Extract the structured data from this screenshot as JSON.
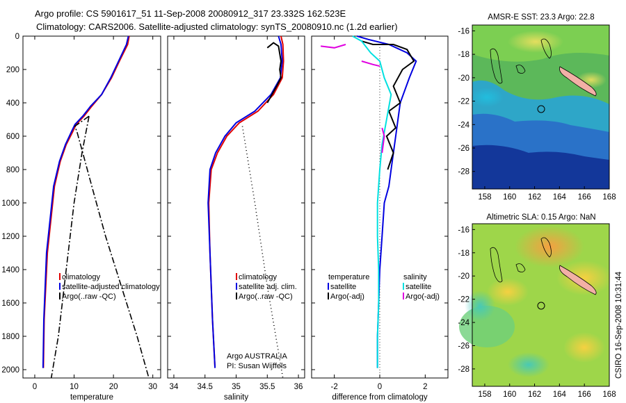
{
  "header": {
    "line1": "Argo profile: CS 5901617_51 11-Sep-2008 20080912_317 23.332S 162.523E",
    "line2": "Climatology: CARS2006. Satellite-adjusted climatology: synTS_20080910.nc (1.2d earlier)"
  },
  "footer_vertical": "CSIRO 16-Sep-2008 10:31:44",
  "chart_data": [
    {
      "type": "line",
      "xlabel": "temperature",
      "ylabel": "",
      "xlim": [
        -3,
        32
      ],
      "ylim": [
        2050,
        0
      ],
      "xticks": [
        0,
        10,
        20,
        30
      ],
      "yticks": [
        0,
        200,
        400,
        600,
        800,
        1000,
        1200,
        1400,
        1600,
        1800,
        2000
      ],
      "legend": [
        "climatology",
        "satellite-adjusted climatology",
        "Argo(..raw -QC)"
      ],
      "series": [
        {
          "name": "climatology",
          "color": "#e00000",
          "dash": "",
          "x": [
            24.0,
            23.6,
            21.5,
            19.5,
            17.0,
            14.5,
            12.5,
            10.5,
            9.5,
            8.0,
            6.5,
            5.0,
            3.2,
            2.4,
            2.2
          ],
          "y": [
            0,
            50,
            150,
            250,
            350,
            420,
            480,
            530,
            580,
            650,
            750,
            900,
            1300,
            1700,
            1990
          ]
        },
        {
          "name": "satellite-adjusted climatology",
          "color": "#0000e0",
          "dash": "",
          "x": [
            23.8,
            23.3,
            21.3,
            19.3,
            17.0,
            14.2,
            12.2,
            10.2,
            9.2,
            7.8,
            6.3,
            4.8,
            3.0,
            2.3,
            2.1
          ],
          "y": [
            0,
            50,
            150,
            250,
            350,
            420,
            480,
            530,
            580,
            650,
            750,
            900,
            1300,
            1700,
            1990
          ]
        },
        {
          "name": "Argo(..raw -QC)",
          "color": "#000000",
          "dash": "9,3,2,3",
          "x": [
            13.8,
            10.2,
            10.8,
            12.2,
            14.5,
            18.0,
            22.0,
            26.0,
            29.0
          ],
          "y": [
            480,
            540,
            580,
            700,
            900,
            1200,
            1500,
            1800,
            2050
          ]
        },
        {
          "name": "Argo(..raw -QC)",
          "color": "#000000",
          "dash": "9,3,2,3",
          "x": [
            13.8,
            12.0,
            10.0,
            8.0,
            6.0,
            4.2
          ],
          "y": [
            480,
            700,
            1000,
            1400,
            1800,
            2050
          ]
        }
      ]
    },
    {
      "type": "line",
      "xlabel": "salinity",
      "ylabel": "",
      "xlim": [
        33.9,
        36.1
      ],
      "ylim": [
        2050,
        0
      ],
      "xticks": [
        34,
        34.5,
        35,
        35.5,
        36
      ],
      "legend": [
        "climatology",
        "satellite adj. clim.",
        "Argo(..raw -QC)"
      ],
      "annotations": [
        "Argo AUSTRALIA",
        "PI: Susan Wijffels"
      ],
      "series": [
        {
          "name": "climatology",
          "color": "#e00000",
          "dash": "",
          "x": [
            35.72,
            35.75,
            35.76,
            35.74,
            35.6,
            35.35,
            35.05,
            34.85,
            34.7,
            34.6,
            34.56,
            34.58,
            34.62,
            34.66
          ],
          "y": [
            0,
            50,
            150,
            250,
            350,
            450,
            520,
            600,
            700,
            800,
            1000,
            1300,
            1700,
            1990
          ]
        },
        {
          "name": "satellite adj. clim.",
          "color": "#0000e0",
          "dash": "",
          "x": [
            35.68,
            35.72,
            35.74,
            35.71,
            35.56,
            35.3,
            35.0,
            34.82,
            34.67,
            34.58,
            34.55,
            34.58,
            34.62,
            34.66
          ],
          "y": [
            0,
            50,
            150,
            250,
            350,
            450,
            520,
            600,
            700,
            800,
            1000,
            1300,
            1700,
            1990
          ]
        },
        {
          "name": "Argo(..raw -QC)",
          "color": "#000000",
          "dash": "",
          "x": [
            35.5,
            35.6,
            35.68,
            35.72,
            35.7,
            35.72,
            35.65,
            35.5
          ],
          "y": [
            70,
            40,
            60,
            150,
            200,
            250,
            300,
            400
          ]
        },
        {
          "name": "Argo(..raw -QC)",
          "color": "#000000",
          "dash": "1,4",
          "x": [
            35.1,
            35.3,
            35.5,
            35.75
          ],
          "y": [
            540,
            1000,
            1500,
            2050
          ]
        }
      ]
    },
    {
      "type": "line",
      "xlabel": "difference from climatology",
      "ylabel": "",
      "xlim": [
        -3,
        3
      ],
      "ylim": [
        2050,
        0
      ],
      "xticks": [
        -2,
        0,
        2
      ],
      "legend": [
        "temperature",
        "satellite",
        "Argo(-adj)",
        "salinity",
        "satellite",
        "Argo(-adj)"
      ],
      "series": [
        {
          "name": "satellite",
          "color": "#0000e0",
          "dash": "",
          "x": [
            -1.0,
            -0.5,
            0.4,
            1.2,
            1.6,
            1.3,
            0.9,
            0.7,
            0.5,
            0.4,
            0.2,
            0.1,
            0.0,
            -0.05,
            -0.1,
            -0.1
          ],
          "y": [
            0,
            20,
            50,
            100,
            150,
            250,
            400,
            600,
            800,
            900,
            1000,
            1200,
            1400,
            1600,
            1800,
            1990
          ]
        },
        {
          "name": "Argo(-adj)",
          "color": "#000000",
          "dash": "",
          "x": [
            -0.8,
            -0.3,
            0.6,
            1.2,
            1.5,
            1.0,
            0.6,
            0.9,
            0.4,
            0.7,
            0.3,
            0.6,
            0.35
          ],
          "y": [
            30,
            50,
            50,
            80,
            150,
            200,
            300,
            400,
            450,
            550,
            600,
            700,
            800
          ]
        },
        {
          "name": "satellite",
          "color": "#00e0e0",
          "dash": "",
          "x": [
            -1.2,
            -0.8,
            -0.4,
            0.0,
            0.2,
            0.5,
            0.3,
            0.1,
            0.0,
            -0.1,
            -0.1,
            -0.05,
            -0.05,
            -0.1,
            -0.1
          ],
          "y": [
            0,
            30,
            100,
            150,
            250,
            350,
            500,
            650,
            800,
            1000,
            1200,
            1400,
            1600,
            1800,
            1990
          ]
        },
        {
          "name": "Argo(-adj)",
          "color": "#e000e0",
          "dash": "",
          "x": [
            -2.6,
            -2.0,
            -1.5
          ],
          "y": [
            60,
            70,
            50
          ]
        },
        {
          "name": "Argo(-adj)",
          "color": "#e000e0",
          "dash": "",
          "x": [
            -0.8,
            -0.3,
            0.0
          ],
          "y": [
            150,
            170,
            180
          ]
        },
        {
          "name": "Argo(-adj)",
          "color": "#e000e0",
          "dash": "",
          "x": [
            0.1,
            0.2,
            0.15,
            0.1
          ],
          "y": [
            550,
            600,
            650,
            700
          ]
        }
      ]
    },
    {
      "type": "heatmap",
      "title": "AMSR-E SST: 23.3 Argo: 22.8",
      "xlim": [
        157,
        168
      ],
      "ylim": [
        -29.5,
        -15.5
      ],
      "xticks": [
        158,
        160,
        162,
        164,
        166,
        168
      ],
      "yticks": [
        -16,
        -18,
        -20,
        -22,
        -24,
        -26,
        -28
      ],
      "profile_marker": {
        "lon": 162.5,
        "lat": -23.33
      }
    },
    {
      "type": "heatmap",
      "title": "Altimetric SLA: 0.15 Argo: NaN",
      "xlim": [
        157,
        168
      ],
      "ylim": [
        -29.5,
        -15.5
      ],
      "xticks": [
        158,
        160,
        162,
        164,
        166,
        168
      ],
      "yticks": [
        -16,
        -18,
        -20,
        -22,
        -24,
        -26,
        -28
      ],
      "profile_marker": {
        "lon": 162.5,
        "lat": -23.33
      }
    }
  ]
}
